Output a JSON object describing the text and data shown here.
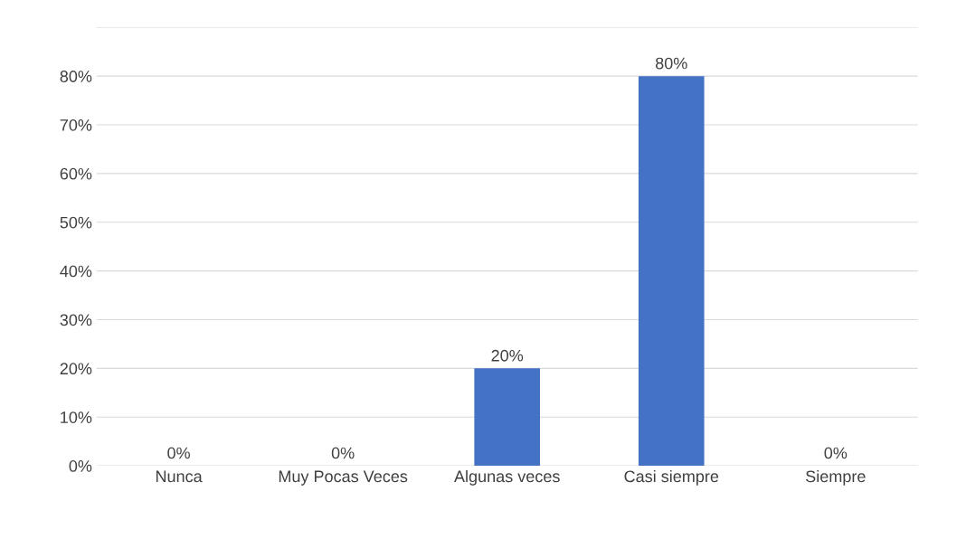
{
  "chart_data": {
    "type": "bar",
    "categories": [
      "Nunca",
      "Muy Pocas Veces",
      "Algunas veces",
      "Casi siempre",
      "Siempre"
    ],
    "values": [
      0,
      0,
      20,
      80,
      0
    ],
    "value_labels": [
      "0%",
      "0%",
      "20%",
      "80%",
      "0%"
    ],
    "color": "#4472c4",
    "ylim": [
      0,
      90
    ],
    "yticks": [
      {
        "value": 0,
        "label": "0%"
      },
      {
        "value": 10,
        "label": "10%"
      },
      {
        "value": 20,
        "label": "20%"
      },
      {
        "value": 30,
        "label": "30%"
      },
      {
        "value": 40,
        "label": "40%"
      },
      {
        "value": 50,
        "label": "50%"
      },
      {
        "value": 60,
        "label": "60%"
      },
      {
        "value": 70,
        "label": "70%"
      },
      {
        "value": 80,
        "label": "80%"
      },
      {
        "value": 90,
        "label": null
      }
    ],
    "grid": "y"
  }
}
